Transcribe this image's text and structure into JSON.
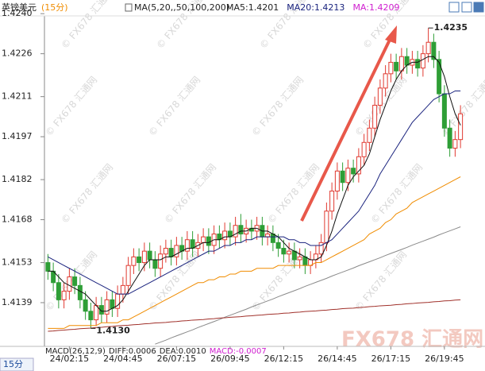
{
  "chart_data": {
    "type": "candlestick",
    "title": "英镑美元",
    "subtitle": "(15分)",
    "ma_params": "MA(5,20,,50,100,200)",
    "ma_readouts": [
      {
        "label": "MA5:1.4201",
        "color": "#222222"
      },
      {
        "label": "MA20:1.4213",
        "color": "#1a237e"
      },
      {
        "label": "MA:1.4209",
        "color": "#d020d0"
      }
    ],
    "high_label": "1.4235",
    "low_label": "1.4130",
    "indicator": {
      "name": "MACD(26,12,9)",
      "diff": "DIFF:0.0006",
      "dea": "DEA:0.0010",
      "macd": "MACD:-0.0007"
    },
    "period_tab": "15分",
    "watermark": "© FX678 汇通网",
    "logo": "FX678 汇通网",
    "ylim": [
      1.4124,
      1.4242
    ],
    "yticks": [
      {
        "value": 1.4139,
        "label": "1.4139"
      },
      {
        "value": 1.4153,
        "label": "1.4153"
      },
      {
        "value": 1.4168,
        "label": "1.4168"
      },
      {
        "value": 1.4182,
        "label": "1.4182"
      },
      {
        "value": 1.4197,
        "label": "1.4197"
      },
      {
        "value": 1.4211,
        "label": "1.4211"
      },
      {
        "value": 1.4226,
        "label": "1.4226"
      },
      {
        "value": 1.424,
        "label": "1.4240"
      }
    ],
    "up_color": "#e03a30",
    "down_color": "#2e9e36",
    "categories": [
      null,
      null,
      null,
      null,
      "24/02:15",
      null,
      null,
      null,
      null,
      null,
      null,
      null,
      null,
      null,
      "24/04:45",
      null,
      null,
      null,
      null,
      null,
      null,
      null,
      null,
      null,
      "26/07:15",
      null,
      null,
      null,
      null,
      null,
      null,
      null,
      null,
      null,
      "26/09:45",
      null,
      null,
      null,
      null,
      null,
      null,
      null,
      null,
      null,
      "26/12:15",
      null,
      null,
      null,
      null,
      null,
      null,
      null,
      null,
      null,
      "26/14:45",
      null,
      null,
      null,
      null,
      null,
      null,
      null,
      null,
      null,
      "26/17:15",
      null,
      null,
      null,
      null,
      null,
      null,
      null,
      null,
      null,
      "26/19:45",
      null,
      null,
      null
    ],
    "open": [
      1.4153,
      1.415,
      1.4146,
      1.414,
      1.4143,
      1.4148,
      1.4145,
      1.414,
      1.4136,
      1.4133,
      1.4138,
      1.4135,
      1.414,
      1.4137,
      1.4142,
      1.4145,
      1.4152,
      1.4155,
      1.4153,
      1.4157,
      1.4154,
      1.4151,
      1.4156,
      1.4158,
      1.4155,
      1.4159,
      1.4157,
      1.4161,
      1.4158,
      1.416,
      1.4162,
      1.4159,
      1.4163,
      1.4161,
      1.4164,
      1.4162,
      1.4166,
      1.4163,
      1.4165,
      1.4164,
      1.4166,
      1.4162,
      1.4163,
      1.416,
      1.4158,
      1.4156,
      1.4157,
      1.4154,
      1.4155,
      1.4152,
      1.4154,
      1.4156,
      1.416,
      1.4171,
      1.4178,
      1.4185,
      1.4181,
      1.4186,
      1.4184,
      1.419,
      1.4195,
      1.42,
      1.4208,
      1.4214,
      1.4219,
      1.4223,
      1.422,
      1.4225,
      1.4222,
      1.4224,
      1.4221,
      1.4226,
      1.423,
      1.4224,
      1.4212,
      1.42,
      1.4193,
      1.4196
    ],
    "high": [
      1.4156,
      1.4153,
      1.4149,
      1.4146,
      1.4151,
      1.4151,
      1.4148,
      1.4143,
      1.4139,
      1.4141,
      1.4141,
      1.4143,
      1.4143,
      1.4145,
      1.4148,
      1.4155,
      1.4158,
      1.4158,
      1.416,
      1.416,
      1.4157,
      1.4159,
      1.4161,
      1.4161,
      1.4162,
      1.4162,
      1.4164,
      1.4164,
      1.4163,
      1.4165,
      1.4165,
      1.4166,
      1.4166,
      1.4167,
      1.4167,
      1.4169,
      1.417,
      1.4168,
      1.4168,
      1.4169,
      1.4169,
      1.4166,
      1.4166,
      1.4163,
      1.4161,
      1.416,
      1.416,
      1.4158,
      1.4158,
      1.4157,
      1.4159,
      1.4163,
      1.4174,
      1.4181,
      1.4188,
      1.4188,
      1.4189,
      1.4189,
      1.4193,
      1.4198,
      1.4203,
      1.4211,
      1.4217,
      1.4222,
      1.4226,
      1.4226,
      1.4228,
      1.4228,
      1.4227,
      1.4227,
      1.4229,
      1.4235,
      1.4233,
      1.4227,
      1.4215,
      1.4203,
      1.4199,
      1.4208
    ],
    "low": [
      1.4147,
      1.4143,
      1.4137,
      1.4137,
      1.414,
      1.4142,
      1.4137,
      1.4133,
      1.413,
      1.4131,
      1.4132,
      1.4132,
      1.4134,
      1.4134,
      1.4139,
      1.4142,
      1.4149,
      1.415,
      1.415,
      1.4151,
      1.4148,
      1.4148,
      1.4153,
      1.4152,
      1.4152,
      1.4154,
      1.4154,
      1.4155,
      1.4155,
      1.4157,
      1.4156,
      1.4156,
      1.4158,
      1.4158,
      1.4159,
      1.4159,
      1.416,
      1.416,
      1.4161,
      1.4161,
      1.4159,
      1.4159,
      1.4157,
      1.4155,
      1.4153,
      1.4153,
      1.4151,
      1.4151,
      1.4149,
      1.4149,
      1.4151,
      1.4153,
      1.4157,
      1.4168,
      1.4175,
      1.4178,
      1.4178,
      1.4181,
      1.4181,
      1.4187,
      1.4192,
      1.4197,
      1.4205,
      1.4211,
      1.4216,
      1.4217,
      1.4217,
      1.4219,
      1.4219,
      1.4218,
      1.4218,
      1.4223,
      1.4221,
      1.4209,
      1.4197,
      1.419,
      1.419,
      1.4193
    ],
    "close": [
      1.415,
      1.4146,
      1.414,
      1.4143,
      1.4148,
      1.4145,
      1.414,
      1.4136,
      1.4133,
      1.4138,
      1.4135,
      1.414,
      1.4137,
      1.4142,
      1.4145,
      1.4152,
      1.4155,
      1.4153,
      1.4157,
      1.4154,
      1.4151,
      1.4156,
      1.4158,
      1.4155,
      1.4159,
      1.4157,
      1.4161,
      1.4158,
      1.416,
      1.4162,
      1.4159,
      1.4163,
      1.4161,
      1.4164,
      1.4162,
      1.4166,
      1.4163,
      1.4165,
      1.4164,
      1.4166,
      1.4162,
      1.4163,
      1.416,
      1.4158,
      1.4156,
      1.4157,
      1.4154,
      1.4155,
      1.4152,
      1.4154,
      1.4156,
      1.416,
      1.4171,
      1.4178,
      1.4185,
      1.4181,
      1.4186,
      1.4184,
      1.419,
      1.4195,
      1.42,
      1.4208,
      1.4214,
      1.4219,
      1.4223,
      1.422,
      1.4225,
      1.4222,
      1.4224,
      1.4221,
      1.4226,
      1.423,
      1.4224,
      1.4212,
      1.42,
      1.4193,
      1.4196,
      1.4205
    ],
    "ma_lines": [
      {
        "color": "#111111",
        "values": [
          1.415,
          1.415,
          1.4148,
          1.4146,
          1.4145,
          1.4144,
          1.4143,
          1.4142,
          1.414,
          1.4138,
          1.4136,
          1.4136,
          1.4137,
          1.4138,
          1.414,
          1.4143,
          1.4146,
          1.4149,
          1.4152,
          1.4154,
          1.4154,
          1.4154,
          1.4155,
          1.4155,
          1.4156,
          1.4157,
          1.4158,
          1.4158,
          1.4159,
          1.416,
          1.416,
          1.4161,
          1.4161,
          1.4162,
          1.4162,
          1.4163,
          1.4164,
          1.4164,
          1.4165,
          1.4165,
          1.4164,
          1.4164,
          1.4163,
          1.4162,
          1.416,
          1.4158,
          1.4157,
          1.4156,
          1.4155,
          1.4154,
          1.4154,
          1.4155,
          1.4159,
          1.4164,
          1.417,
          1.4175,
          1.418,
          1.4183,
          1.4185,
          1.4187,
          1.4191,
          1.4197,
          1.4203,
          1.4208,
          1.4213,
          1.4217,
          1.422,
          1.4222,
          1.4223,
          1.4223,
          1.4224,
          1.4225,
          1.4225,
          1.4223,
          1.4218,
          1.4211,
          1.4205,
          1.4201
        ]
      },
      {
        "color": "#1a237e",
        "values": [
          1.4155,
          1.4154,
          1.4153,
          1.4152,
          1.4151,
          1.415,
          1.4149,
          1.4148,
          1.4147,
          1.4146,
          1.4145,
          1.4144,
          1.4143,
          1.4142,
          1.4142,
          1.4142,
          1.4143,
          1.4144,
          1.4145,
          1.4146,
          1.4147,
          1.4148,
          1.4149,
          1.415,
          1.4151,
          1.4152,
          1.4153,
          1.4154,
          1.4155,
          1.4156,
          1.4157,
          1.4157,
          1.4158,
          1.4159,
          1.4159,
          1.416,
          1.416,
          1.4161,
          1.4161,
          1.4162,
          1.4162,
          1.4162,
          1.4162,
          1.4162,
          1.4162,
          1.4161,
          1.4161,
          1.416,
          1.416,
          1.4159,
          1.4159,
          1.4159,
          1.416,
          1.4161,
          1.4163,
          1.4165,
          1.4167,
          1.4169,
          1.4171,
          1.4174,
          1.4177,
          1.418,
          1.4184,
          1.4187,
          1.419,
          1.4193,
          1.4196,
          1.4199,
          1.4202,
          1.4204,
          1.4206,
          1.4208,
          1.421,
          1.4211,
          1.4212,
          1.4212,
          1.4213,
          1.4213
        ]
      },
      {
        "color": "#f08c00",
        "values": [
          1.413,
          1.413,
          1.413,
          1.413,
          1.4131,
          1.4131,
          1.4131,
          1.4131,
          1.4131,
          1.4131,
          1.4132,
          1.4132,
          1.4132,
          1.4132,
          1.4133,
          1.4133,
          1.4134,
          1.4135,
          1.4136,
          1.4137,
          1.4138,
          1.4139,
          1.414,
          1.4141,
          1.4142,
          1.4143,
          1.4144,
          1.4145,
          1.4146,
          1.4146,
          1.4147,
          1.4147,
          1.4148,
          1.4148,
          1.4149,
          1.4149,
          1.415,
          1.415,
          1.415,
          1.4151,
          1.4151,
          1.4151,
          1.4151,
          1.4152,
          1.4152,
          1.4152,
          1.4152,
          1.4152,
          1.4152,
          1.4152,
          1.4153,
          1.4153,
          1.4154,
          1.4155,
          1.4156,
          1.4157,
          1.4158,
          1.4159,
          1.416,
          1.4161,
          1.4163,
          1.4164,
          1.4165,
          1.4167,
          1.4168,
          1.417,
          1.4171,
          1.4172,
          1.4174,
          1.4175,
          1.4176,
          1.4177,
          1.4178,
          1.4179,
          1.418,
          1.4181,
          1.4182,
          1.4183
        ]
      },
      {
        "color": "#8a8a8a",
        "values": [
          null,
          null,
          null,
          null,
          null,
          null,
          null,
          null,
          null,
          null,
          null,
          null,
          null,
          null,
          null,
          null,
          null,
          null,
          null,
          null,
          1.41245,
          1.41252,
          1.41259,
          1.41267,
          1.41274,
          1.41281,
          1.41288,
          1.41295,
          1.41303,
          1.4131,
          1.41317,
          1.41324,
          1.41331,
          1.41339,
          1.41346,
          1.41353,
          1.4136,
          1.41367,
          1.41375,
          1.41382,
          1.41389,
          1.41396,
          1.41403,
          1.41411,
          1.41418,
          1.41425,
          1.41432,
          1.41439,
          1.41447,
          1.41454,
          1.41461,
          1.41468,
          1.41475,
          1.41483,
          1.4149,
          1.41497,
          1.41504,
          1.41511,
          1.41519,
          1.41526,
          1.41533,
          1.4154,
          1.41547,
          1.41555,
          1.41562,
          1.41569,
          1.41576,
          1.41583,
          1.41591,
          1.41598,
          1.41605,
          1.41612,
          1.41619,
          1.41627,
          1.41634,
          1.41641,
          1.41648,
          1.41655
        ]
      },
      {
        "color": "#a0302a",
        "values": [
          1.4129,
          1.41291,
          1.41293,
          1.41294,
          1.41296,
          1.41297,
          1.41299,
          1.413,
          1.41301,
          1.41303,
          1.41304,
          1.41306,
          1.41307,
          1.41309,
          1.4131,
          1.41311,
          1.41313,
          1.41314,
          1.41316,
          1.41317,
          1.41319,
          1.4132,
          1.41321,
          1.41323,
          1.41324,
          1.41326,
          1.41327,
          1.41329,
          1.4133,
          1.41331,
          1.41333,
          1.41334,
          1.41336,
          1.41337,
          1.41339,
          1.4134,
          1.41341,
          1.41343,
          1.41344,
          1.41346,
          1.41347,
          1.41349,
          1.4135,
          1.41351,
          1.41353,
          1.41354,
          1.41356,
          1.41357,
          1.41359,
          1.4136,
          1.41361,
          1.41363,
          1.41364,
          1.41366,
          1.41367,
          1.41369,
          1.4137,
          1.41371,
          1.41373,
          1.41374,
          1.41376,
          1.41377,
          1.41379,
          1.4138,
          1.41381,
          1.41383,
          1.41384,
          1.41386,
          1.41387,
          1.41389,
          1.4139,
          1.41391,
          1.41393,
          1.41394,
          1.41396,
          1.41397,
          1.41399,
          1.414
        ]
      }
    ]
  }
}
